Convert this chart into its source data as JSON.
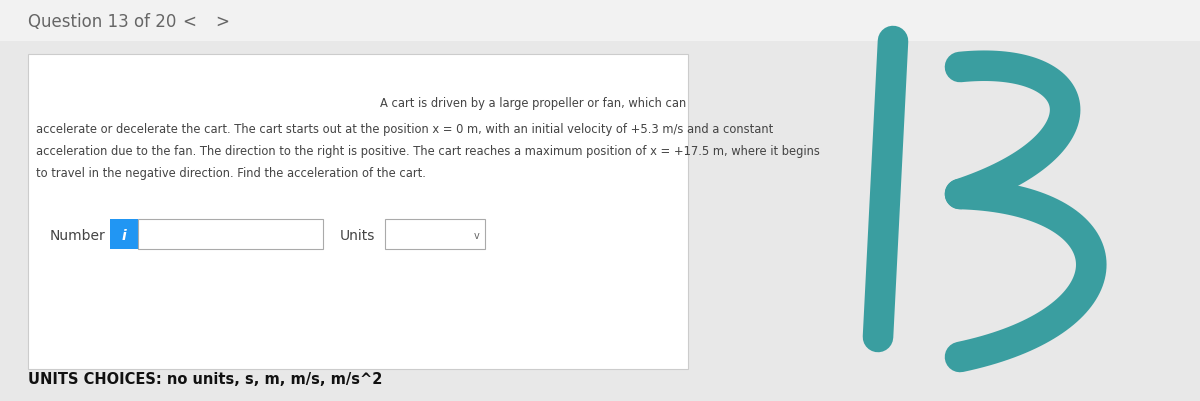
{
  "header_text": "Question 13 of 20",
  "header_bg": "#f2f2f2",
  "header_text_color": "#666666",
  "nav_prev": "<",
  "nav_next": ">",
  "body_bg": "#e8e8e8",
  "card_bg": "#ffffff",
  "problem_text_line1": "A cart is driven by a large propeller or fan, which can",
  "problem_text_line2": "accelerate or decelerate the cart. The cart starts out at the position x = 0 m, with an initial velocity of +5.3 m/s and a constant",
  "problem_text_line3": "acceleration due to the fan. The direction to the right is positive. The cart reaches a maximum position of x = +17.5 m, where it begins",
  "problem_text_line4": "to travel in the negative direction. Find the acceleration of the cart.",
  "problem_text_color": "#444444",
  "label_number": "Number",
  "label_units": "Units",
  "info_btn_color": "#2196F3",
  "info_btn_text": "i",
  "units_choices_text": "UNITS CHOICES: no units, s, m, m/s, m/s^2",
  "units_choices_color": "#111111",
  "number_13_color": "#3a9ea0",
  "fig_width": 12.0,
  "fig_height": 4.02
}
